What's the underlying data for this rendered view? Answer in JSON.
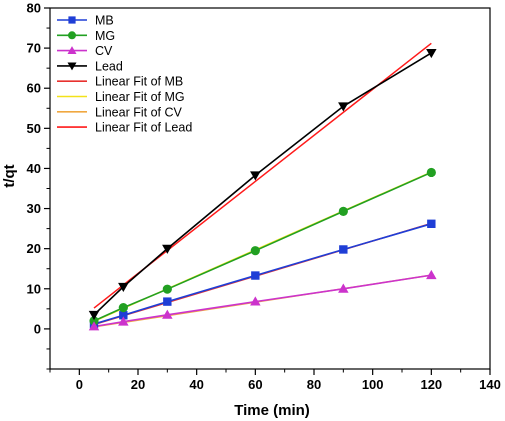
{
  "chart_data": {
    "type": "scatter",
    "xlabel": "Time (min)",
    "ylabel": "t/qt",
    "xlim": [
      -10,
      140
    ],
    "ylim": [
      -10,
      80
    ],
    "xticks": [
      0,
      20,
      40,
      60,
      80,
      100,
      120,
      140
    ],
    "yticks": [
      0,
      10,
      20,
      30,
      40,
      50,
      60,
      70,
      80
    ],
    "grid": false,
    "legend_position": "top-left",
    "series": [
      {
        "name": "MB",
        "marker": "square",
        "color": "#1f3ed6",
        "line_color": "#1f3ed6",
        "x": [
          5,
          15,
          30,
          60,
          90,
          120
        ],
        "y": [
          1.2,
          3.4,
          6.8,
          13.3,
          19.8,
          26.2
        ]
      },
      {
        "name": "MG",
        "marker": "circle",
        "color": "#22a022",
        "line_color": "#22a022",
        "x": [
          5,
          15,
          30,
          60,
          90,
          120
        ],
        "y": [
          2.0,
          5.3,
          9.9,
          19.5,
          29.3,
          39.0
        ]
      },
      {
        "name": "CV",
        "marker": "triangle-up",
        "color": "#cc33cc",
        "line_color": "#cc33cc",
        "x": [
          5,
          15,
          30,
          60,
          90,
          120
        ],
        "y": [
          0.6,
          1.8,
          3.5,
          6.8,
          10.0,
          13.4
        ]
      },
      {
        "name": "Lead",
        "marker": "triangle-down",
        "color": "#000000",
        "line_color": "#000000",
        "x": [
          5,
          15,
          30,
          60,
          90,
          120
        ],
        "y": [
          3.5,
          10.5,
          20.0,
          38.3,
          55.5,
          68.8
        ]
      }
    ],
    "fits": [
      {
        "name": "Linear Fit of MB",
        "color": "#e8312f",
        "x": [
          5,
          120
        ],
        "y": [
          1.1,
          26.3
        ]
      },
      {
        "name": "Linear Fit of MG",
        "color": "#f3e21a",
        "x": [
          5,
          120
        ],
        "y": [
          1.9,
          39.1
        ]
      },
      {
        "name": "Linear Fit of CV",
        "color": "#f0a840",
        "x": [
          5,
          120
        ],
        "y": [
          0.5,
          13.4
        ]
      },
      {
        "name": "Linear Fit of Lead",
        "color": "#ff1a1a",
        "x": [
          5,
          120
        ],
        "y": [
          5.2,
          71.2
        ]
      }
    ]
  }
}
